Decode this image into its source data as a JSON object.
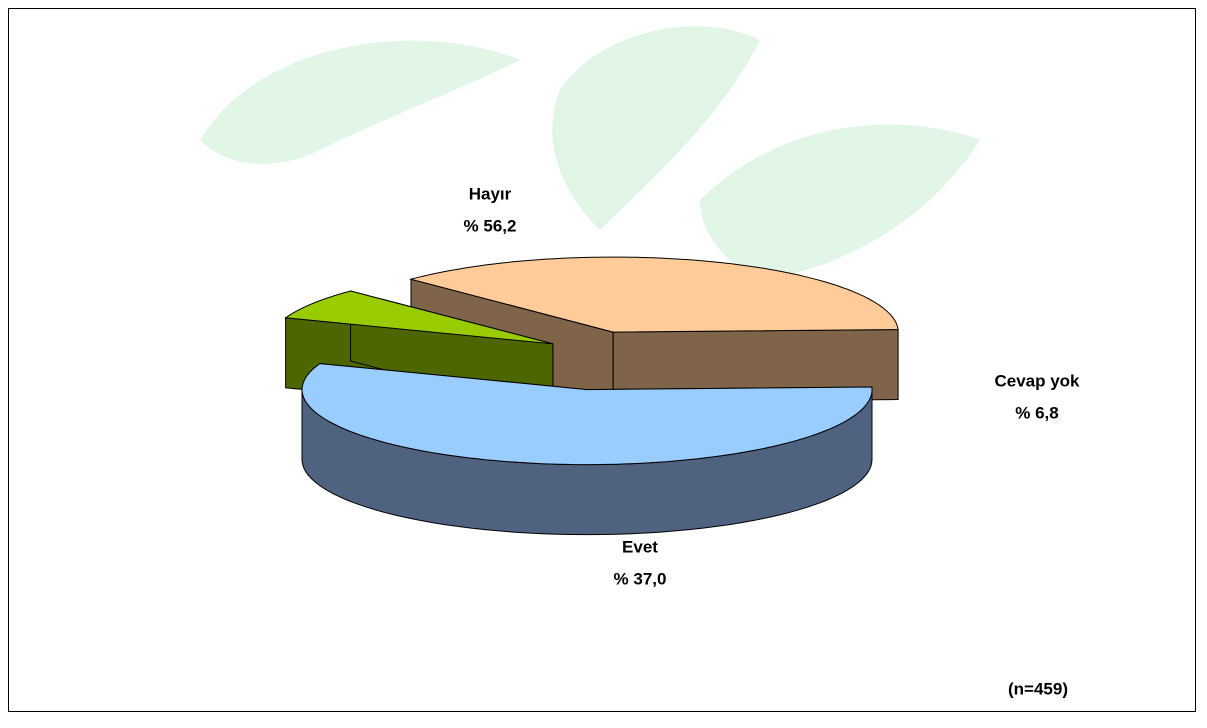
{
  "chart_data": {
    "type": "pie3d",
    "categories": [
      "Hayır",
      "Cevap yok",
      "Evet"
    ],
    "values": [
      56.2,
      6.8,
      37.0
    ],
    "value_labels": [
      "% 56,2",
      "% 6,8",
      "% 37,0"
    ],
    "colors": [
      "#99ccff",
      "#99cc00",
      "#ffcc99"
    ],
    "side_colors": [
      "#4f6381",
      "#4d6600",
      "#7f6449"
    ],
    "annotation": "(n=459)"
  }
}
